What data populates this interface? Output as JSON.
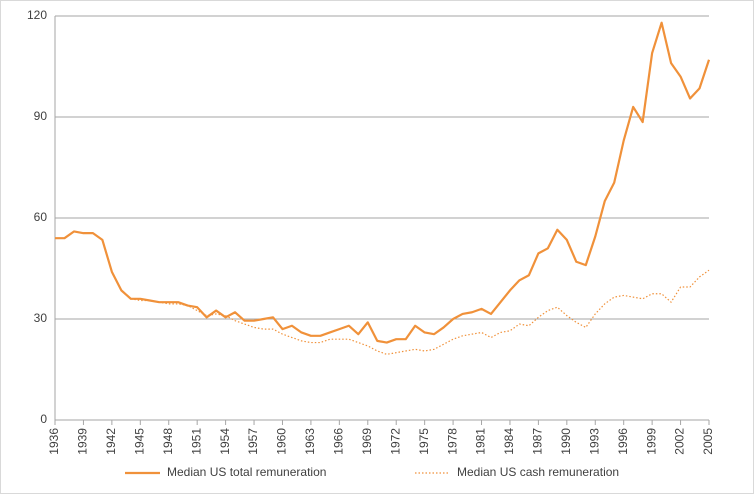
{
  "chart_data": {
    "type": "line",
    "x": [
      1936,
      1937,
      1938,
      1939,
      1940,
      1941,
      1942,
      1943,
      1944,
      1945,
      1946,
      1947,
      1948,
      1949,
      1950,
      1951,
      1952,
      1953,
      1954,
      1955,
      1956,
      1957,
      1958,
      1959,
      1960,
      1961,
      1962,
      1963,
      1964,
      1965,
      1966,
      1967,
      1968,
      1969,
      1970,
      1971,
      1972,
      1973,
      1974,
      1975,
      1976,
      1977,
      1978,
      1979,
      1980,
      1981,
      1982,
      1983,
      1984,
      1985,
      1986,
      1987,
      1988,
      1989,
      1990,
      1991,
      1992,
      1993,
      1994,
      1995,
      1996,
      1997,
      1998,
      1999,
      2000,
      2001,
      2002,
      2003,
      2004,
      2005
    ],
    "series": [
      {
        "name": "Median US total remuneration",
        "color": "#f0913a",
        "style": "solid",
        "values": [
          54,
          54,
          56,
          55.5,
          55.5,
          53.5,
          44,
          38.5,
          36,
          36,
          35.5,
          35,
          35,
          35,
          34,
          33.5,
          30.5,
          32.5,
          30.5,
          32,
          29.5,
          29.5,
          30,
          30.5,
          27,
          28,
          26,
          25,
          25,
          26,
          27,
          28,
          25.5,
          29,
          23.5,
          23,
          24,
          24,
          28,
          26,
          25.5,
          27.5,
          30,
          31.5,
          32,
          33,
          31.5,
          35,
          38.5,
          41.5,
          43,
          49.5,
          51,
          56.5,
          53.5,
          47,
          46,
          54.5,
          65,
          70.5,
          83,
          93,
          88.5,
          109,
          118,
          106,
          102,
          95.5,
          98.5,
          107
        ]
      },
      {
        "name": "Median US cash remuneration",
        "color": "#f0913a",
        "style": "dotted",
        "values": [
          null,
          null,
          null,
          null,
          null,
          null,
          null,
          null,
          36,
          35.5,
          35.5,
          35,
          34.5,
          34.5,
          34,
          32.5,
          31,
          31.5,
          31,
          29.5,
          28.5,
          27.5,
          27,
          27,
          25.5,
          24.5,
          23.5,
          23,
          23,
          24,
          24,
          24,
          23,
          22,
          20.5,
          19.5,
          20,
          20.5,
          21,
          20.5,
          21,
          22.5,
          24,
          25,
          25.5,
          26,
          24.5,
          26,
          26.5,
          28.5,
          28,
          30.5,
          32.5,
          33.5,
          31,
          29,
          27.5,
          31.5,
          34.5,
          36.5,
          37,
          36.5,
          36,
          37.5,
          37.5,
          35,
          39.5,
          39.5,
          42.5,
          44.5
        ]
      }
    ],
    "xlim": [
      1936,
      2005
    ],
    "xticks": [
      1936,
      1939,
      1942,
      1945,
      1948,
      1951,
      1954,
      1957,
      1960,
      1963,
      1966,
      1969,
      1972,
      1975,
      1978,
      1981,
      1984,
      1987,
      1990,
      1993,
      1996,
      1999,
      2002,
      2005
    ],
    "ylim": [
      0,
      120
    ],
    "yticks": [
      0,
      30,
      60,
      90,
      120
    ],
    "grid": true,
    "legend": "bottom"
  }
}
